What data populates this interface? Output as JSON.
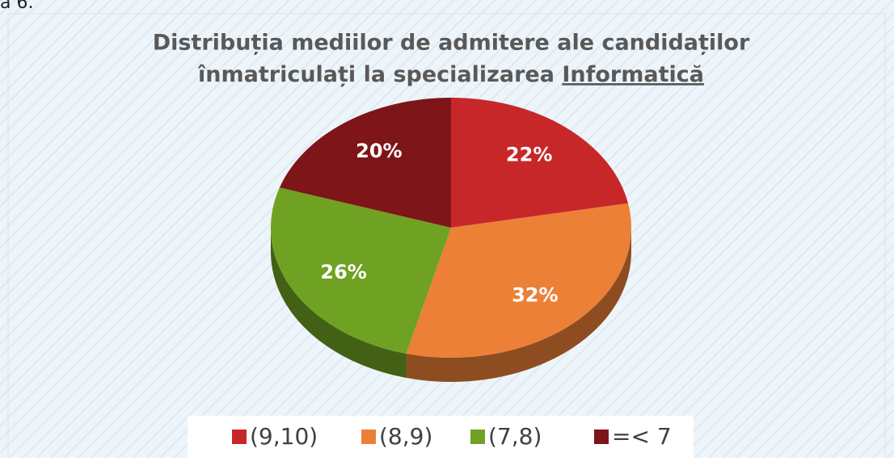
{
  "corner_text": "a 6.",
  "chart_data": {
    "type": "pie",
    "title": [
      "Distribuția mediilor de admitere ale candidaților",
      "înmatriculați la specializarea",
      "Informatică"
    ],
    "categories": [
      "(9,10)",
      "(8,9)",
      "(7,8)",
      "=< 7"
    ],
    "values": [
      22,
      32,
      26,
      20
    ],
    "value_labels": [
      "22%",
      "32%",
      "26%",
      "20%"
    ],
    "colors": [
      "#c8272a",
      "#ec8037",
      "#6fa222",
      "#7e1518"
    ],
    "legend": "bottom"
  }
}
